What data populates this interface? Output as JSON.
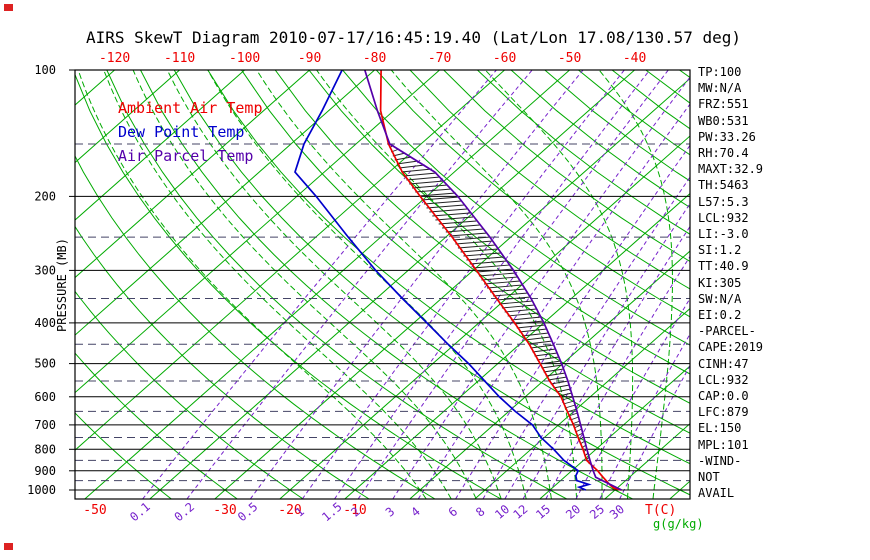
{
  "title": "AIRS SkewT Diagram 2010-07-17/16:45:19.40 (Lat/Lon 17.08/130.57 deg)",
  "colors": {
    "background": "#ffffff",
    "frame": "#000000",
    "isotherm_green": "#00aa00",
    "ambient_red": "#ee0000",
    "dewpoint_blue": "#0000cc",
    "parcel_purple": "#5500aa",
    "mixing_purple": "#7722cc",
    "axis_label_red": "#ee0000",
    "pressure_dash": "#444466",
    "hatch": "#222222",
    "corner_mark": "#dd2222"
  },
  "legend": [
    {
      "label": "Ambient Air Temp",
      "color": "#ee0000"
    },
    {
      "label": "Dew Point Temp",
      "color": "#0000cc"
    },
    {
      "label": "Air Parcel Temp",
      "color": "#5500aa"
    }
  ],
  "stats_panel": {
    "lines": [
      "TP:100",
      "MW:N/A",
      "FRZ:551",
      "WB0:531",
      "PW:33.26",
      "RH:70.4",
      "MAXT:32.9",
      "TH:5463",
      "L57:5.3",
      "LCL:932",
      "LI:-3.0",
      "SI:1.2",
      "TT:40.9",
      "KI:305",
      "SW:N/A",
      "EI:0.2",
      "-PARCEL-",
      "CAPE:2019",
      "CINH:47",
      "LCL:932",
      "CAP:0.0",
      "LFC:879",
      "EL:150",
      "MPL:101",
      "-WIND-",
      "NOT",
      "AVAIL"
    ]
  },
  "axes": {
    "pressure_axis_label": "PRESSURE (MB)",
    "pressure_ticks": [
      100,
      200,
      300,
      400,
      500,
      600,
      700,
      800,
      900,
      1000
    ],
    "intermediate_pressure_lines": [
      150,
      250,
      350,
      450,
      550,
      650,
      750,
      850,
      950
    ],
    "top_temp_ticks": [
      -120,
      -110,
      -100,
      -90,
      -80,
      -70,
      -60,
      -50,
      -40
    ],
    "bottom_temp_ticks": [
      -50,
      -30,
      -20,
      -10
    ],
    "temp_unit_label": "T(C)",
    "mixing_unit_label": "g(g/kg)"
  },
  "chart_data": {
    "type": "line",
    "variant": "skewt-logp",
    "title": "AIRS SkewT Diagram 2010-07-17/16:45:19.40 (Lat/Lon 17.08/130.57 deg)",
    "xlabel": "T(C)",
    "ylabel": "PRESSURE (MB)",
    "pressure_range_mb": [
      100,
      1050
    ],
    "temp_range_at_1000mb_C": [
      -50,
      40
    ],
    "grid": true,
    "legend_position": "upper-left",
    "isotherms_C": [
      -120,
      -110,
      -100,
      -90,
      -80,
      -70,
      -60,
      -50,
      -40,
      -30,
      -20,
      -10,
      0,
      10,
      20,
      30,
      40
    ],
    "dry_adiabats_C": [
      -40,
      -30,
      -20,
      -10,
      0,
      10,
      20,
      30,
      40,
      50,
      60,
      70,
      80,
      90,
      100,
      110,
      120,
      130,
      140,
      150,
      160,
      170,
      180,
      190
    ],
    "moist_adiabats_C": [
      0,
      4,
      8,
      12,
      16,
      20,
      24,
      28,
      32,
      36
    ],
    "mixing_ratios_g_kg": [
      0.1,
      0.2,
      0.5,
      1,
      1.5,
      2,
      3,
      4,
      6,
      8,
      10,
      12,
      15,
      20,
      25,
      30
    ],
    "series": [
      {
        "name": "Ambient Air Temp",
        "color": "#ee0000",
        "points_p_T": [
          [
            100,
            -79
          ],
          [
            125,
            -72
          ],
          [
            150,
            -65
          ],
          [
            175,
            -58
          ],
          [
            200,
            -51
          ],
          [
            250,
            -39
          ],
          [
            300,
            -29.5
          ],
          [
            350,
            -21.5
          ],
          [
            400,
            -14.5
          ],
          [
            450,
            -8.5
          ],
          [
            500,
            -3.5
          ],
          [
            550,
            1
          ],
          [
            600,
            5.5
          ],
          [
            650,
            9
          ],
          [
            700,
            12.3
          ],
          [
            750,
            15.2
          ],
          [
            800,
            18
          ],
          [
            850,
            20.5
          ],
          [
            900,
            24
          ],
          [
            925,
            25.5
          ],
          [
            950,
            27
          ],
          [
            975,
            28.5
          ],
          [
            990,
            29.5
          ],
          [
            1000,
            31
          ]
        ]
      },
      {
        "name": "Dew Point Temp",
        "color": "#0000cc",
        "points_p_T": [
          [
            100,
            -85
          ],
          [
            125,
            -81
          ],
          [
            150,
            -78
          ],
          [
            175,
            -74.5
          ],
          [
            200,
            -67
          ],
          [
            250,
            -55
          ],
          [
            300,
            -45
          ],
          [
            350,
            -36
          ],
          [
            400,
            -28
          ],
          [
            450,
            -21
          ],
          [
            500,
            -14.5
          ],
          [
            550,
            -9
          ],
          [
            600,
            -4
          ],
          [
            650,
            1
          ],
          [
            700,
            6
          ],
          [
            750,
            9.5
          ],
          [
            800,
            13.5
          ],
          [
            850,
            17
          ],
          [
            900,
            21
          ],
          [
            925,
            21.5
          ],
          [
            950,
            22.5
          ],
          [
            970,
            25
          ],
          [
            985,
            24
          ],
          [
            1000,
            25.5
          ]
        ]
      },
      {
        "name": "Air Parcel Temp",
        "color": "#5500aa",
        "points_p_T": [
          [
            100,
            -81.5
          ],
          [
            125,
            -72.5
          ],
          [
            150,
            -64.8
          ],
          [
            175,
            -53
          ],
          [
            200,
            -45.2
          ],
          [
            250,
            -33.2
          ],
          [
            300,
            -23.8
          ],
          [
            350,
            -16.2
          ],
          [
            400,
            -10
          ],
          [
            450,
            -4.8
          ],
          [
            500,
            -0.2
          ],
          [
            550,
            3.8
          ],
          [
            600,
            7.3
          ],
          [
            650,
            10.5
          ],
          [
            700,
            13.4
          ],
          [
            750,
            16.1
          ],
          [
            800,
            18.6
          ],
          [
            850,
            21
          ],
          [
            900,
            23.3
          ],
          [
            932,
            24.8
          ],
          [
            1000,
            31
          ]
        ]
      }
    ],
    "cape_hatch": {
      "between": [
        "Air Parcel Temp",
        "Ambient Air Temp"
      ],
      "pressure_bottom_mb": 879,
      "pressure_top_mb": 150
    }
  }
}
